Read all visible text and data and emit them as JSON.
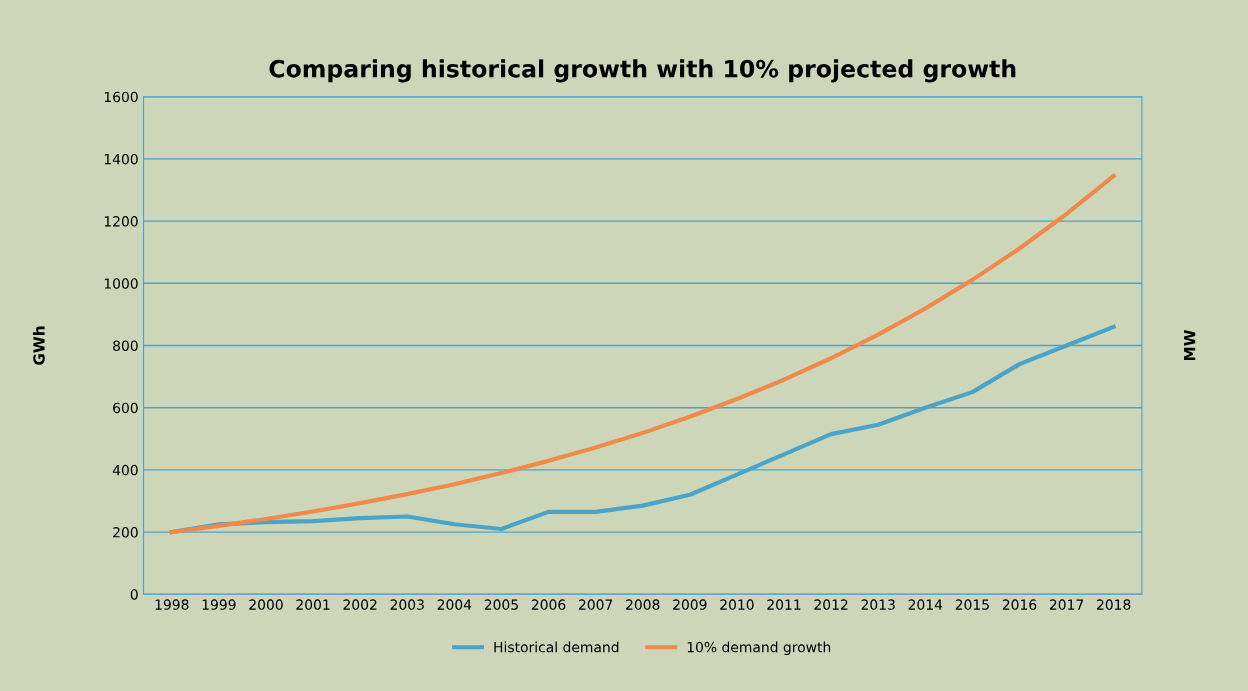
{
  "chart_data": {
    "type": "line",
    "title": "Comparing historical growth with 10% projected growth",
    "ylabel": "GWh",
    "y2label": "MW",
    "categories": [
      "1998",
      "1999",
      "2000",
      "2001",
      "2002",
      "2003",
      "2004",
      "2005",
      "2006",
      "2007",
      "2008",
      "2009",
      "2010",
      "2011",
      "2012",
      "2013",
      "2014",
      "2015",
      "2016",
      "2017",
      "2018"
    ],
    "series": [
      {
        "name": "Historical demand",
        "color": "#4aa3c8",
        "values": [
          200,
          225,
          232,
          235,
          245,
          250,
          225,
          210,
          265,
          265,
          285,
          320,
          385,
          450,
          515,
          545,
          600,
          650,
          740,
          800,
          860
        ]
      },
      {
        "name": "10% demand growth",
        "color": "#ef8a4a",
        "values": [
          200,
          220,
          242,
          266,
          293,
          322,
          354,
          390,
          429,
          472,
          519,
          571,
          628,
          690,
          759,
          835,
          919,
          1011,
          1112,
          1223,
          1345
        ]
      }
    ],
    "ylim": [
      0,
      1600
    ],
    "yticks": [
      0,
      200,
      400,
      600,
      800,
      1000,
      1200,
      1400,
      1600
    ],
    "grid": "y",
    "legend": "bottom",
    "marker": "none",
    "line_style": "solid"
  }
}
